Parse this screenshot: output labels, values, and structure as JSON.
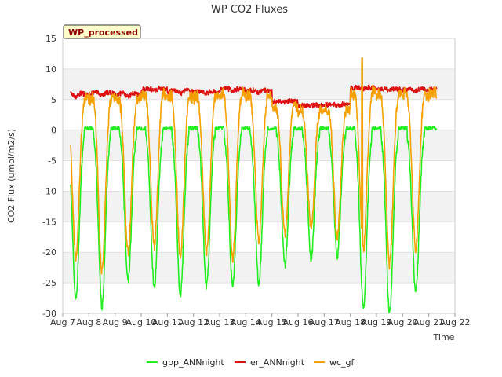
{
  "chart_data": {
    "type": "line",
    "title": "WP CO2 Fluxes",
    "xlabel": "Time",
    "ylabel": "CO2 Flux (umol/m2/s)",
    "badge": "WP_processed",
    "xlim": [
      7,
      22
    ],
    "ylim": [
      -30,
      15
    ],
    "x_ticks": [
      {
        "v": 7,
        "label": "Aug 7"
      },
      {
        "v": 8,
        "label": "Aug 8"
      },
      {
        "v": 9,
        "label": "Aug 9"
      },
      {
        "v": 10,
        "label": "Aug 10"
      },
      {
        "v": 11,
        "label": "Aug 11"
      },
      {
        "v": 12,
        "label": "Aug 12"
      },
      {
        "v": 13,
        "label": "Aug 13"
      },
      {
        "v": 14,
        "label": "Aug 14"
      },
      {
        "v": 15,
        "label": "Aug 15"
      },
      {
        "v": 16,
        "label": "Aug 16"
      },
      {
        "v": 17,
        "label": "Aug 17"
      },
      {
        "v": 18,
        "label": "Aug 18"
      },
      {
        "v": 19,
        "label": "Aug 19"
      },
      {
        "v": 20,
        "label": "Aug 20"
      },
      {
        "v": 21,
        "label": "Aug 21"
      },
      {
        "v": 22,
        "label": "Aug 22"
      }
    ],
    "y_ticks": [
      {
        "v": 15,
        "label": "15"
      },
      {
        "v": 10,
        "label": "10"
      },
      {
        "v": 5,
        "label": "5"
      },
      {
        "v": 0,
        "label": "0"
      },
      {
        "v": -5,
        "label": "-5"
      },
      {
        "v": -10,
        "label": "-10"
      },
      {
        "v": -15,
        "label": "-15"
      },
      {
        "v": -20,
        "label": "-20"
      },
      {
        "v": -25,
        "label": "-25"
      },
      {
        "v": -30,
        "label": "-30"
      }
    ],
    "days": [
      7.5,
      8.5,
      9.5,
      10.5,
      11.5,
      12.5,
      13.5,
      14.5,
      15.5,
      16.5,
      17.5,
      18.5,
      19.5,
      20.5
    ],
    "x_end": 21.3,
    "series": [
      {
        "name": "gpp_ANNnight",
        "color": "#22ee22",
        "daily_min": [
          -27.5,
          -29,
          -24.5,
          -25.5,
          -27,
          -25.5,
          -25.5,
          -25,
          -22,
          -21,
          -20.5,
          -29,
          -30,
          -26.5
        ],
        "night_value": 0.3
      },
      {
        "name": "er_ANNnight",
        "color": "#dd1111",
        "daily_base": [
          5.5,
          5.8,
          5.5,
          6.5,
          6.0,
          6.0,
          6.5,
          6.2,
          4.5,
          4.0,
          4.0,
          6.8,
          6.5,
          6.5
        ],
        "night_peak": [
          6.5,
          6.5,
          6.5,
          7.2,
          7.0,
          6.8,
          7.0,
          6.8,
          5.0,
          4.2,
          4.5,
          7.2,
          7.0,
          7.0
        ]
      },
      {
        "name": "wc_gf",
        "color": "#f5a000",
        "daily_min": [
          -21,
          -23,
          -20,
          -19,
          -21,
          -20,
          -21,
          -18,
          -17,
          -16,
          -17.5,
          -19.5,
          -22,
          -19.5
        ],
        "spike": {
          "x": 18.45,
          "y": 11.8
        }
      }
    ]
  }
}
